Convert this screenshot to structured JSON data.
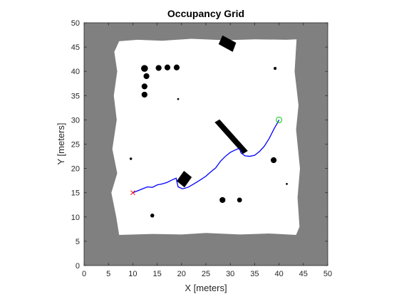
{
  "chart_data": {
    "type": "occupancy-grid",
    "title": "Occupancy Grid",
    "xlabel": "X [meters]",
    "ylabel": "Y [meters]",
    "xlim": [
      0,
      50
    ],
    "ylim": [
      0,
      50
    ],
    "xticks": [
      0,
      5,
      10,
      15,
      20,
      25,
      30,
      35,
      40,
      45,
      50
    ],
    "yticks": [
      0,
      5,
      10,
      15,
      20,
      25,
      30,
      35,
      40,
      45,
      50
    ],
    "colors": {
      "occupied": "#808080",
      "free": "#ffffff",
      "obstacle": "#000000",
      "path": "#0000ff",
      "start_marker": "#ff0000",
      "goal_marker": "#00cc00"
    },
    "free_space": [
      [
        7.2,
        46.2
      ],
      [
        11,
        46.5
      ],
      [
        16,
        46.3
      ],
      [
        22,
        46.7
      ],
      [
        29,
        46.4
      ],
      [
        35,
        46.6
      ],
      [
        41.5,
        46.5
      ],
      [
        43.6,
        46.6
      ],
      [
        43.2,
        40
      ],
      [
        44,
        33
      ],
      [
        43.5,
        28
      ],
      [
        44.3,
        20
      ],
      [
        43.8,
        14
      ],
      [
        44.2,
        8
      ],
      [
        43.5,
        6.3
      ],
      [
        38,
        6.6
      ],
      [
        32,
        6.4
      ],
      [
        25,
        6.7
      ],
      [
        20,
        6.4
      ],
      [
        14,
        6.5
      ],
      [
        7.2,
        6.3
      ],
      [
        6.6,
        10
      ],
      [
        5.6,
        15
      ],
      [
        6.8,
        19
      ],
      [
        5.8,
        24
      ],
      [
        6.7,
        30
      ],
      [
        6.1,
        35
      ],
      [
        6.8,
        40
      ],
      [
        6.2,
        44
      ]
    ],
    "obstacles": [
      {
        "shape": "circle",
        "center": [
          12.4,
          40.6
        ],
        "radius": 0.7
      },
      {
        "shape": "circle",
        "center": [
          15.3,
          40.7
        ],
        "radius": 0.6
      },
      {
        "shape": "circle",
        "center": [
          17.1,
          40.8
        ],
        "radius": 0.6
      },
      {
        "shape": "circle",
        "center": [
          19.0,
          40.8
        ],
        "radius": 0.6
      },
      {
        "shape": "circle",
        "center": [
          12.8,
          39.0
        ],
        "radius": 0.6
      },
      {
        "shape": "circle",
        "center": [
          12.4,
          36.9
        ],
        "radius": 0.6
      },
      {
        "shape": "circle",
        "center": [
          12.4,
          35.2
        ],
        "radius": 0.6
      },
      {
        "shape": "circle",
        "center": [
          19.3,
          34.3
        ],
        "radius": 0.2
      },
      {
        "shape": "circle",
        "center": [
          39.2,
          40.6
        ],
        "radius": 0.3
      },
      {
        "shape": "circle",
        "center": [
          38.9,
          21.7
        ],
        "radius": 0.6
      },
      {
        "shape": "circle",
        "center": [
          9.6,
          22.0
        ],
        "radius": 0.25
      },
      {
        "shape": "circle",
        "center": [
          41.6,
          16.8
        ],
        "radius": 0.2
      },
      {
        "shape": "circle",
        "center": [
          28.4,
          13.5
        ],
        "radius": 0.6
      },
      {
        "shape": "circle",
        "center": [
          31.9,
          13.5
        ],
        "radius": 0.5
      },
      {
        "shape": "circle",
        "center": [
          14.0,
          10.3
        ],
        "radius": 0.4
      },
      {
        "shape": "polygon",
        "points": [
          [
            26.8,
            29.5
          ],
          [
            27.8,
            30.1
          ],
          [
            33.6,
            23.6
          ],
          [
            32.6,
            23.0
          ]
        ]
      },
      {
        "shape": "polygon",
        "points": [
          [
            19.0,
            17.4
          ],
          [
            20.5,
            19.5
          ],
          [
            22.1,
            18.2
          ],
          [
            20.6,
            16.1
          ]
        ]
      },
      {
        "shape": "polygon",
        "points": [
          [
            27.6,
            45.6
          ],
          [
            30.5,
            44.0
          ],
          [
            31.2,
            45.9
          ],
          [
            28.4,
            47.4
          ]
        ]
      }
    ],
    "path": [
      [
        10,
        15
      ],
      [
        11,
        15.4
      ],
      [
        12,
        15.8
      ],
      [
        13,
        16.2
      ],
      [
        14,
        16.1
      ],
      [
        15,
        16.6
      ],
      [
        16,
        16.8
      ],
      [
        17,
        17.1
      ],
      [
        18,
        17.6
      ],
      [
        18.9,
        18
      ],
      [
        19.1,
        17
      ],
      [
        19.3,
        16.2
      ],
      [
        20.2,
        15.8
      ],
      [
        21.3,
        16.1
      ],
      [
        22.5,
        16.8
      ],
      [
        23.8,
        17.6
      ],
      [
        25,
        18.4
      ],
      [
        26,
        19.3
      ],
      [
        27,
        20.1
      ],
      [
        28,
        21.5
      ],
      [
        29,
        22.5
      ],
      [
        30,
        23.3
      ],
      [
        31,
        23.8
      ],
      [
        31.7,
        24.1
      ],
      [
        32,
        23.8
      ],
      [
        32.2,
        23.2
      ],
      [
        33,
        22.6
      ],
      [
        34,
        22.5
      ],
      [
        35,
        22.7
      ],
      [
        36,
        23.5
      ],
      [
        37,
        24.6
      ],
      [
        38,
        26.2
      ],
      [
        39,
        28.2
      ],
      [
        39.7,
        29.4
      ],
      [
        40,
        30
      ]
    ],
    "start": [
      10,
      15
    ],
    "goal": [
      40,
      30
    ]
  }
}
